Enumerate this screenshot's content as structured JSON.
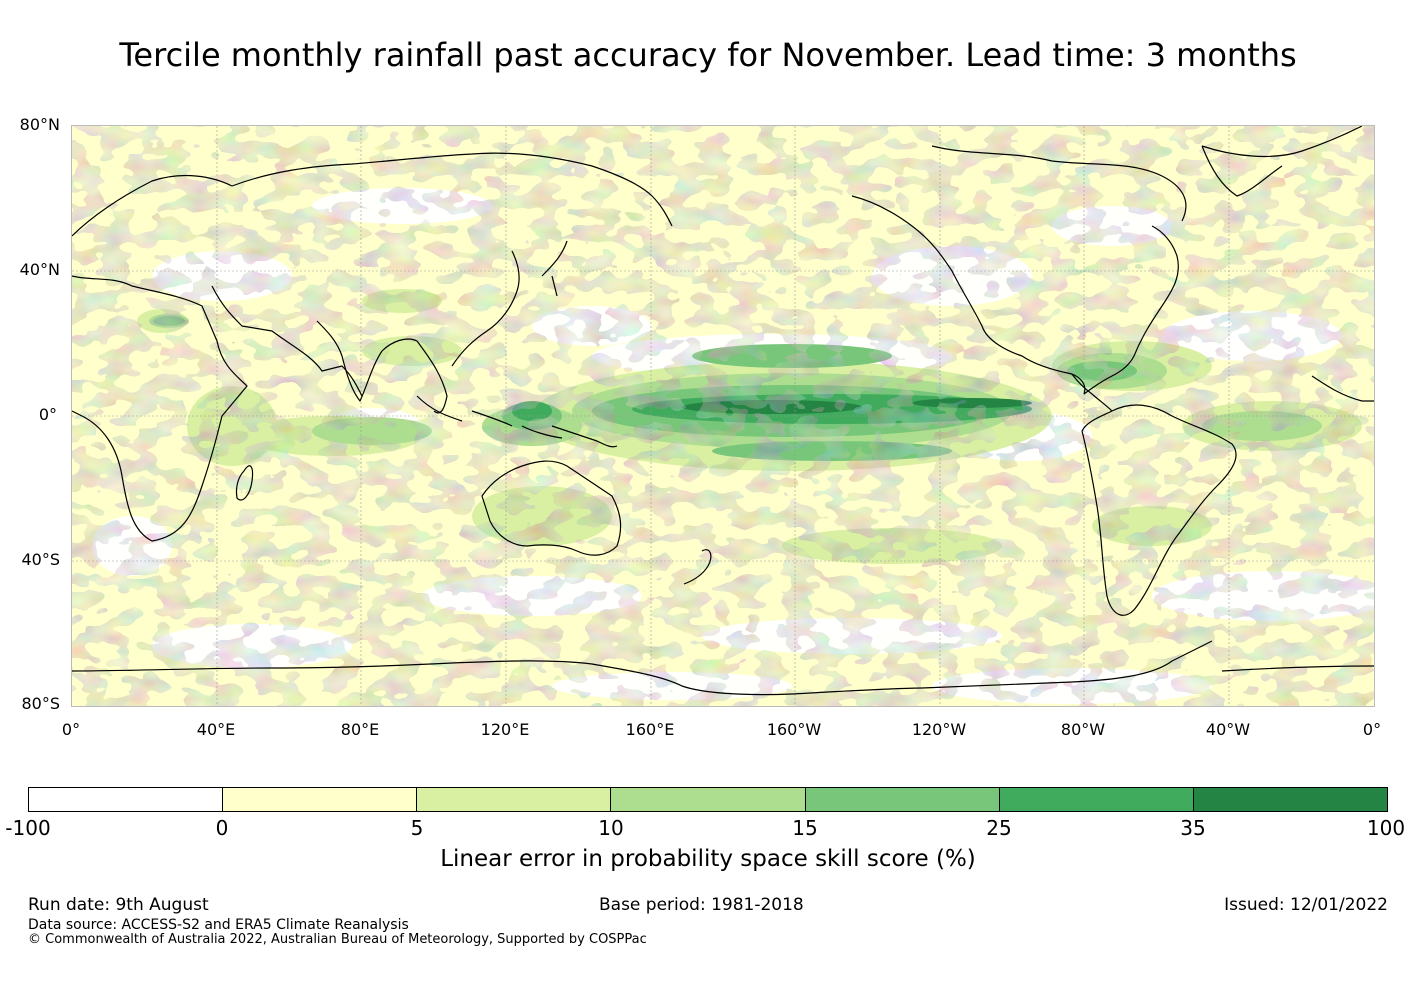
{
  "title": "Tercile monthly rainfall past accuracy for November. Lead time: 3 months",
  "map": {
    "lat_labels": [
      "80°N",
      "40°N",
      "0°",
      "40°S",
      "80°S"
    ],
    "lon_labels": [
      "0°",
      "40°E",
      "80°E",
      "120°E",
      "160°E",
      "160°W",
      "120°W",
      "80°W",
      "40°W",
      "0°"
    ],
    "background_color": "#ffffcc"
  },
  "colorbar": {
    "ticks": [
      "-100",
      "0",
      "5",
      "10",
      "15",
      "25",
      "35",
      "100"
    ],
    "colors": [
      "#ffffff",
      "#ffffcc",
      "#d9f0a3",
      "#addd8e",
      "#78c679",
      "#41ab5d",
      "#238443"
    ],
    "label": "Linear error in probability space skill score (%)"
  },
  "footer": {
    "run_date": "Run date: 9th August",
    "base_period": "Base period: 1981-2018",
    "issued": "Issued: 12/01/2022",
    "data_source": "Data source: ACCESS-S2 and ERA5 Climate Reanalysis",
    "copyright": "© Commonwealth of Australia 2022, Australian Bureau of Meteorology, Supported by COSPPac"
  }
}
